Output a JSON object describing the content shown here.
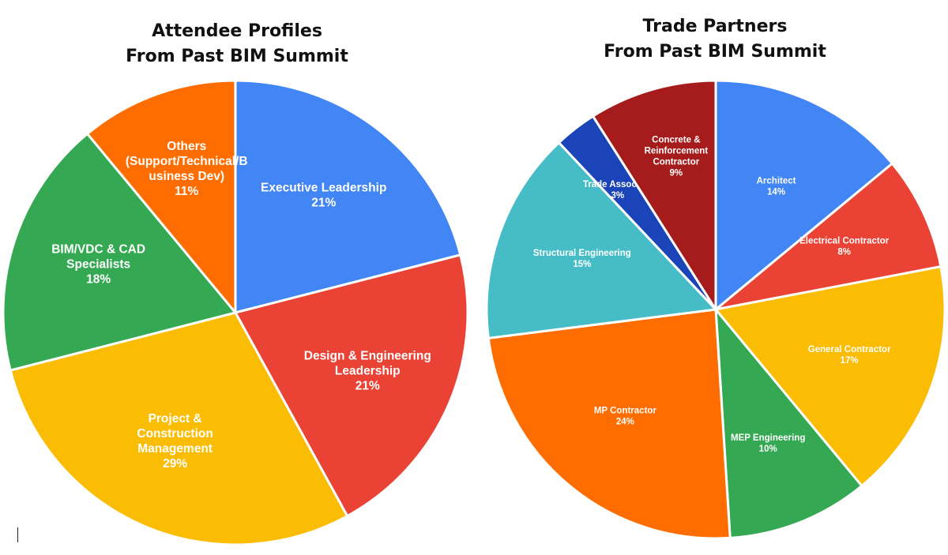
{
  "chart_data": [
    {
      "type": "pie",
      "title_lines": [
        "Attendee Profiles",
        "From Past BIM Summit"
      ],
      "unit": "%",
      "slices": [
        {
          "label_lines": [
            "Executive Leadership"
          ],
          "value": 21,
          "value_label": "21%",
          "color": "#4285f4"
        },
        {
          "label_lines": [
            "Design & Engineering",
            "Leadership"
          ],
          "value": 21,
          "value_label": "21%",
          "color": "#ea4335"
        },
        {
          "label_lines": [
            "Project &",
            "Construction",
            "Management"
          ],
          "value": 29,
          "value_label": "29%",
          "color": "#fbbc04"
        },
        {
          "label_lines": [
            "BIM/VDC  & CAD",
            "Specialists"
          ],
          "value": 18,
          "value_label": "18%",
          "color": "#34a853"
        },
        {
          "label_lines": [
            "Others",
            "(Support/Technical/B",
            "usiness Dev)"
          ],
          "value": 11,
          "value_label": "11%",
          "color": "#ff6d01"
        }
      ]
    },
    {
      "type": "pie",
      "title_lines": [
        "Trade Partners",
        "From Past BIM Summit"
      ],
      "unit": "%",
      "slices": [
        {
          "label_lines": [
            "Architect"
          ],
          "value": 14,
          "value_label": "14%",
          "color": "#4285f4"
        },
        {
          "label_lines": [
            "Electrical Contractor"
          ],
          "value": 8,
          "value_label": "8%",
          "color": "#ea4335"
        },
        {
          "label_lines": [
            "General Contractor"
          ],
          "value": 17,
          "value_label": "17%",
          "color": "#fbbc04"
        },
        {
          "label_lines": [
            "MEP Engineering"
          ],
          "value": 10,
          "value_label": "10%",
          "color": "#34a853"
        },
        {
          "label_lines": [
            "MP Contractor"
          ],
          "value": 24,
          "value_label": "24%",
          "color": "#ff6d01"
        },
        {
          "label_lines": [
            "Structural Engineering"
          ],
          "value": 15,
          "value_label": "15%",
          "color": "#46bdc6"
        },
        {
          "label_lines": [
            "Trade Associate"
          ],
          "value": 3,
          "value_label": "3%",
          "color": "#1a44b8"
        },
        {
          "label_lines": [
            "Concrete &",
            "Reinforcement",
            "Contractor"
          ],
          "value": 9,
          "value_label": "9%",
          "color": "#a61c1c"
        }
      ]
    }
  ]
}
